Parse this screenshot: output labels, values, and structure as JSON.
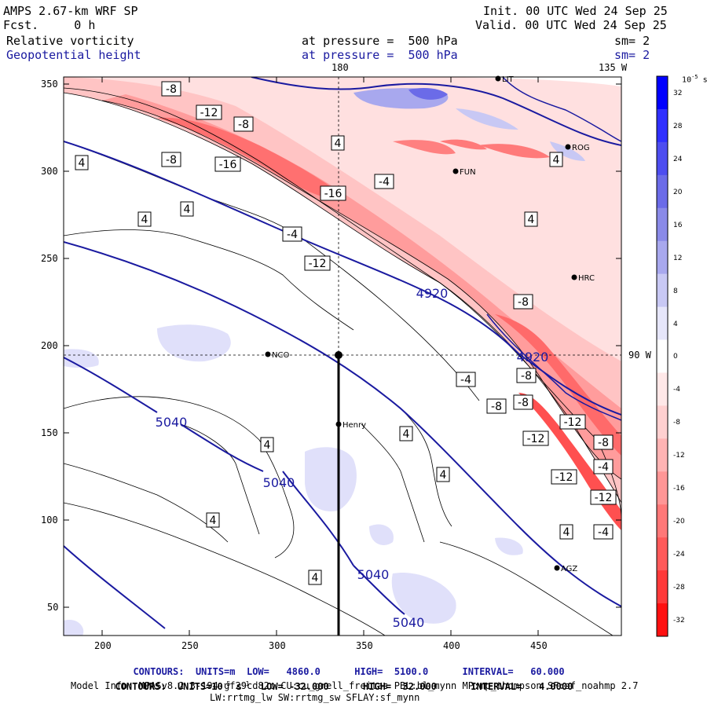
{
  "header": {
    "model": "AMPS 2.67-km WRF SP",
    "forecast": "Fcst.     0 h",
    "init": "Init. 00 UTC Wed 24 Sep 25",
    "valid": "Valid. 00 UTC Wed 24 Sep 25",
    "field1_name": "Relative vorticity",
    "field1_level": "at pressure =  500 hPa",
    "field1_sm": "sm= 2",
    "field2_name": "Geopotential height",
    "field2_level": "at pressure =  500 hPa",
    "field2_sm": "sm= 2"
  },
  "map": {
    "lon_labels": {
      "top": "180",
      "top_right": "135 W",
      "right": "90 W"
    },
    "x_ticks": [
      "200",
      "250",
      "300",
      "350",
      "400",
      "450"
    ],
    "y_ticks": [
      "350",
      "300",
      "250",
      "200",
      "150",
      "100",
      "50"
    ],
    "stations": [
      "LIT",
      "ROG",
      "FUN",
      "HRC",
      "NCO",
      "Henry",
      "AGZ"
    ],
    "height_labels": [
      "4920",
      "4920",
      "5040",
      "5040",
      "5040",
      "5040"
    ],
    "vort_labels": [
      "-8",
      "-12",
      "-8",
      "-8",
      "-16",
      "-16",
      "-4",
      "-4",
      "4",
      "4",
      "4",
      "4",
      "4",
      "4",
      "4",
      "4",
      "4",
      "4",
      "4",
      "4",
      "-8",
      "-8",
      "-4",
      "-8",
      "-8",
      "-12",
      "-12",
      "-8",
      "-12",
      "-4",
      "-12",
      "-4",
      "-12",
      "4",
      "4"
    ],
    "colors": {
      "height_contour": "#1a1aa0",
      "vort_contour": "#000000"
    }
  },
  "colorbar": {
    "units": "10",
    "units_exp": "-5",
    "units_suffix": "s",
    "units_suffix_exp": "-1",
    "labels": [
      "32",
      "28",
      "24",
      "20",
      "16",
      "12",
      "8",
      "4",
      "0",
      "-4",
      "-8",
      "-12",
      "-16",
      "-20",
      "-24",
      "-28",
      "-32"
    ],
    "colors": [
      "#0000ff",
      "#3030ff",
      "#4d4df0",
      "#6b6be8",
      "#8a8ae8",
      "#a8a8ee",
      "#c8c8f4",
      "#e6e6fa",
      "#ffffff",
      "#ffe8e8",
      "#ffd0d0",
      "#ffb4b4",
      "#ff9696",
      "#ff7878",
      "#ff5a5a",
      "#ff3a3a",
      "#ff1010"
    ]
  },
  "footer": {
    "line1_label": "CONTOURS:",
    "line1_units": "UNITS=m",
    "line1_low": "LOW=   4860.0",
    "line1_high": "HIGH=  5100.0",
    "line1_interval": "INTERVAL=   60.000",
    "line2_label": "CONTOURS:",
    "line2_units_pre": "UNITS=10",
    "line2_units_exp": "-5",
    "line2_units_s": " s",
    "line2_units_s_exp": "-1",
    "line2_low": "LOW= -32.000",
    "line2_high": "HIGH=  32.000",
    "line2_interval": "INTERVAL=   4.0000",
    "model_info1": "Model Info: MPASv8.2.3-194-gf29cd82c CU:cu_grell_freitas PBL:bl_mynn MP:mp_thompson SF:sf_noahmp 2.7",
    "model_info2": "LW:rrtmg_lw SW:rrtmg_sw SFLAY:sf_mynn"
  }
}
